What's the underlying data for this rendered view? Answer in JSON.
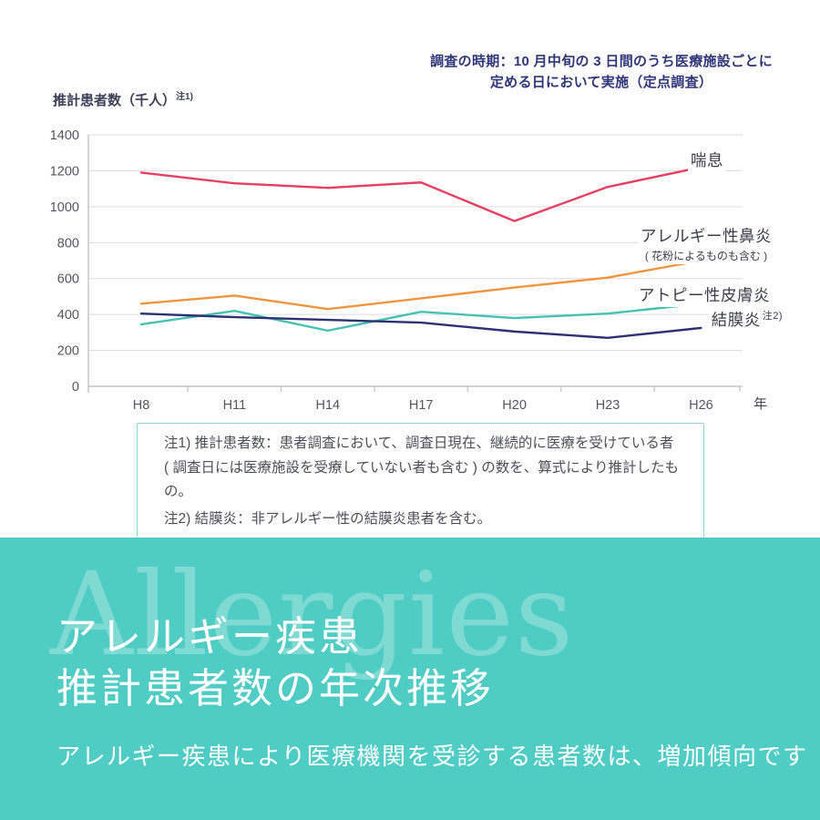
{
  "survey_note": {
    "line1": "調査の時期：10 月中旬の 3 日間のうち医療施設ごとに",
    "line2": "定める日において実施（定点調査）"
  },
  "series_labels": {
    "asthma": "喘息",
    "rhinitis": "アレルギー性鼻炎",
    "rhinitis_sub": "( 花粉によるものも含む )",
    "atopic": "アトピー性皮膚炎",
    "conjunctivitis": "結膜炎",
    "conjunctivitis_note": "注2)"
  },
  "footnotes": {
    "line1": "注1) 推計患者数：患者調査において、調査日現在、継続的に医療を受けている者",
    "line2": "( 調査日には医療施設を受療していない者も含む ) の数を、算式により推計したもの。",
    "line3": "注2) 結膜炎：非アレルギー性の結膜炎患者を含む。"
  },
  "hero": {
    "watermark": "Allergies",
    "title_line1": "アレルギー疾患",
    "title_line2": "推計患者数の年次推移",
    "subtitle": "アレルギー疾患により医療機関を受診する患者数は、増加傾向です",
    "background_color": "#4fccc4"
  },
  "colors": {
    "annotation_navy": "#2f3577",
    "grid_gray": "#dcdce0",
    "axis_gray": "#c3c3c9",
    "note_border_teal": "#8fd8d2"
  },
  "chart_data": {
    "type": "line",
    "title": "アレルギー疾患推計患者数の年次推移",
    "categories": [
      "H8",
      "H11",
      "H14",
      "H17",
      "H20",
      "H23",
      "H26"
    ],
    "x_unit": "年",
    "ylabel": "推計患者数（千人）",
    "ylabel_note": "注1)",
    "ylim": [
      0,
      1400
    ],
    "y_tick_step": 200,
    "grid": true,
    "legend_position": "right-inline",
    "series": [
      {
        "name": "喘息",
        "color": "#e73e64",
        "values": [
          1190,
          1130,
          1105,
          1135,
          920,
          1110,
          1220
        ]
      },
      {
        "name": "アレルギー性鼻炎（花粉によるものも含む）",
        "color": "#f0953d",
        "values": [
          460,
          505,
          430,
          490,
          550,
          605,
          700
        ]
      },
      {
        "name": "アトピー性皮膚炎",
        "color": "#45c2b2",
        "values": [
          345,
          420,
          310,
          415,
          380,
          405,
          460
        ]
      },
      {
        "name": "結膜炎",
        "color": "#2c3173",
        "values": [
          405,
          385,
          370,
          355,
          305,
          270,
          325
        ]
      }
    ]
  }
}
